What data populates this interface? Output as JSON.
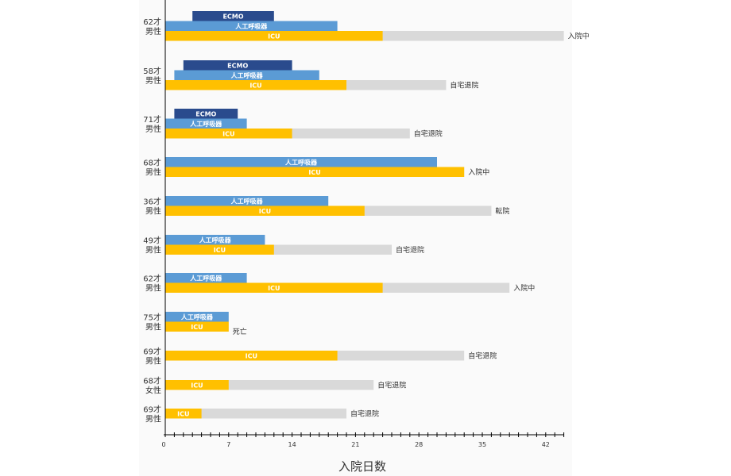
{
  "colors": {
    "ecmo": "#2a4b8d",
    "ventilator": "#5b9bd5",
    "icu": "#ffc000",
    "stay": "#d9d9d9",
    "bar_text": "#ffffff",
    "text": "#333333",
    "axis": "#000000"
  },
  "chart_data": {
    "type": "bar",
    "orientation": "horizontal",
    "xlabel": "入院日数",
    "xlim": [
      0,
      44
    ],
    "xticks": [
      0,
      7,
      14,
      21,
      28,
      35,
      42
    ],
    "minor_tick_step": 1,
    "grid": false,
    "segment_labels": {
      "ecmo": "ECMO",
      "ventilator": "人工呼吸器",
      "icu": "ICU"
    },
    "patients": [
      {
        "age": "62才",
        "sex": "男性",
        "ecmo": [
          3,
          12
        ],
        "ventilator": [
          0,
          19
        ],
        "icu": [
          0,
          24
        ],
        "stay": 44,
        "outcome": "入院中"
      },
      {
        "age": "58才",
        "sex": "男性",
        "ecmo": [
          2,
          14
        ],
        "ventilator": [
          1,
          17
        ],
        "icu": [
          0,
          20
        ],
        "stay": 31,
        "outcome": "自宅退院"
      },
      {
        "age": "71才",
        "sex": "男性",
        "ecmo": [
          1,
          8
        ],
        "ventilator": [
          0,
          9
        ],
        "icu": [
          0,
          14
        ],
        "stay": 27,
        "outcome": "自宅退院"
      },
      {
        "age": "68才",
        "sex": "男性",
        "ventilator": [
          0,
          30
        ],
        "icu": [
          0,
          33
        ],
        "stay": 33,
        "outcome": "入院中"
      },
      {
        "age": "36才",
        "sex": "男性",
        "ventilator": [
          0,
          18
        ],
        "icu": [
          0,
          22
        ],
        "stay": 36,
        "outcome": "転院"
      },
      {
        "age": "49才",
        "sex": "男性",
        "ventilator": [
          0,
          11
        ],
        "icu": [
          0,
          12
        ],
        "stay": 25,
        "outcome": "自宅退院"
      },
      {
        "age": "62才",
        "sex": "男性",
        "ventilator": [
          0,
          9
        ],
        "icu": [
          0,
          24
        ],
        "stay": 38,
        "outcome": "入院中"
      },
      {
        "age": "75才",
        "sex": "男性",
        "ventilator": [
          0,
          7
        ],
        "icu": [
          0,
          7
        ],
        "stay": 7,
        "outcome": "死亡"
      },
      {
        "age": "69才",
        "sex": "男性",
        "icu": [
          0,
          19
        ],
        "stay": 33,
        "outcome": "自宅退院"
      },
      {
        "age": "68才",
        "sex": "女性",
        "icu": [
          0,
          7
        ],
        "stay": 23,
        "outcome": "自宅退院"
      },
      {
        "age": "69才",
        "sex": "男性",
        "icu": [
          0,
          4
        ],
        "stay": 20,
        "outcome": "自宅退院"
      }
    ]
  }
}
